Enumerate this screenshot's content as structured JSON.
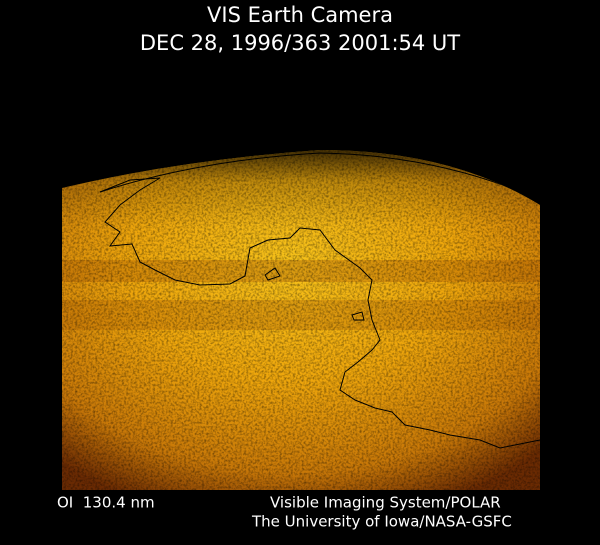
{
  "header": {
    "title": "VIS Earth Camera",
    "timestamp": "DEC 28, 1996/363 2001:54 UT"
  },
  "footer": {
    "wavelength": "OI  130.4 nm",
    "instrument": "Visible Imaging System/POLAR",
    "institution": "The University of Iowa/NASA-GSFC"
  }
}
